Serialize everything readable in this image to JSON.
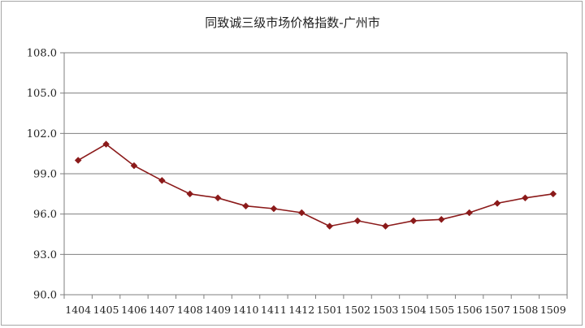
{
  "chart_data": {
    "type": "line",
    "title": "同致诚三级市场价格指数-广州市",
    "xlabel": "",
    "ylabel": "",
    "categories": [
      "1404",
      "1405",
      "1406",
      "1407",
      "1408",
      "1409",
      "1410",
      "1411",
      "1412",
      "1501",
      "1502",
      "1503",
      "1504",
      "1505",
      "1506",
      "1507",
      "1508",
      "1509"
    ],
    "series": [
      {
        "name": "",
        "values": [
          100.0,
          101.2,
          99.6,
          98.5,
          97.5,
          97.2,
          96.6,
          96.4,
          96.1,
          95.1,
          95.5,
          95.1,
          95.5,
          95.6,
          96.1,
          96.8,
          97.2,
          97.5
        ],
        "color": "#8b1a1a"
      }
    ],
    "yticks": [
      "90.0",
      "93.0",
      "96.0",
      "99.0",
      "102.0",
      "105.0",
      "108.0"
    ],
    "ylim": [
      90,
      108
    ],
    "grid": true,
    "legend": "none"
  }
}
